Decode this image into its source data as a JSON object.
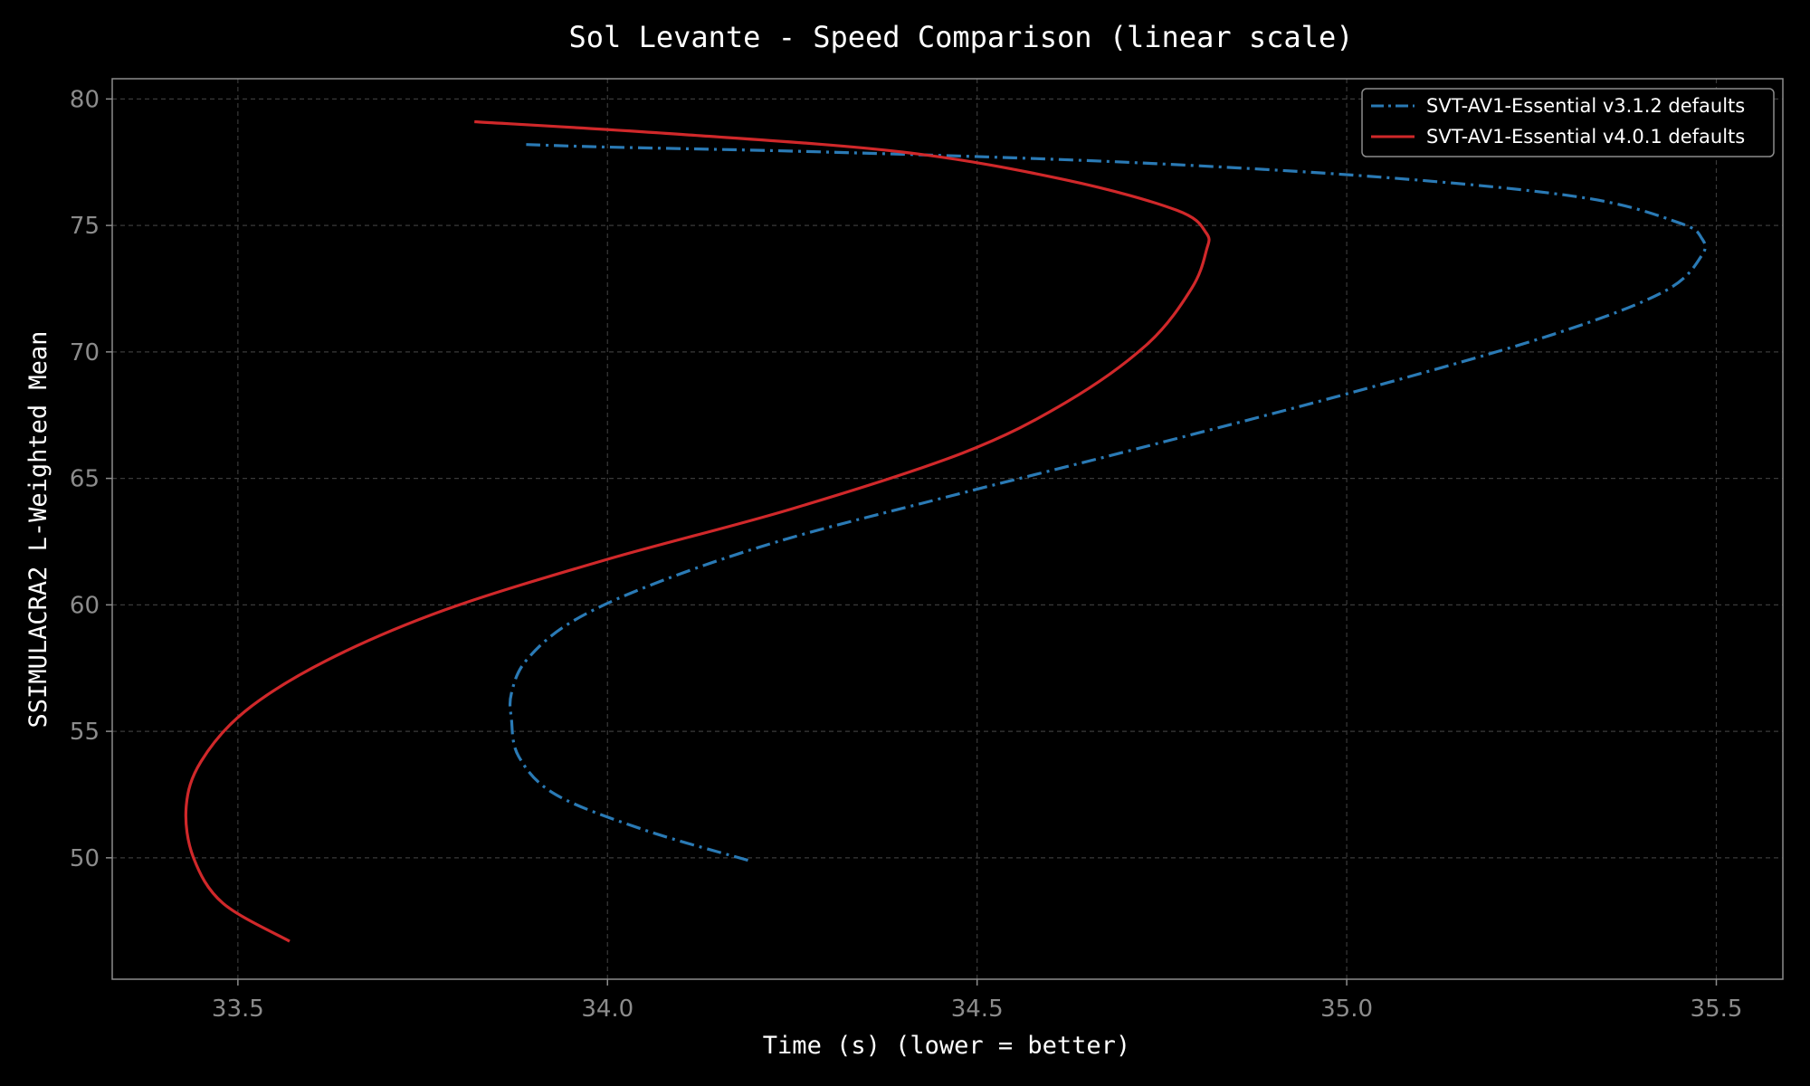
{
  "chart_data": {
    "type": "line",
    "title": "Sol Levante - Speed Comparison (linear scale)",
    "xlabel": "Time (s) (lower = better)",
    "ylabel": "SSIMULACRA2 L-Weighted Mean",
    "xlim": [
      33.33,
      35.59
    ],
    "ylim": [
      45.2,
      80.8
    ],
    "xticks": [
      33.5,
      34.0,
      34.5,
      35.0,
      35.5
    ],
    "xtick_labels": [
      "33.5",
      "34.0",
      "34.5",
      "35.0",
      "35.5"
    ],
    "yticks": [
      50,
      55,
      60,
      65,
      70,
      75,
      80
    ],
    "ytick_labels": [
      "50",
      "55",
      "60",
      "65",
      "70",
      "75",
      "80"
    ],
    "grid": true,
    "legend_position": "top-right",
    "colors": {
      "background": "#000000",
      "grid": "#3a3a3a",
      "frame": "#8c8c8c"
    },
    "series": [
      {
        "name": "SVT-AV1-Essential v3.1.2 defaults",
        "color": "#2a7ab5",
        "style": "dashdot",
        "points": [
          [
            34.19,
            49.9
          ],
          [
            34.05,
            51.1
          ],
          [
            33.93,
            52.5
          ],
          [
            33.88,
            54.0
          ],
          [
            33.87,
            55.5
          ],
          [
            33.87,
            56.5
          ],
          [
            33.89,
            57.8
          ],
          [
            33.95,
            59.3
          ],
          [
            34.06,
            60.8
          ],
          [
            34.23,
            62.5
          ],
          [
            34.45,
            64.2
          ],
          [
            34.72,
            66.2
          ],
          [
            35.02,
            68.5
          ],
          [
            35.28,
            70.7
          ],
          [
            35.43,
            72.4
          ],
          [
            35.48,
            73.8
          ],
          [
            35.48,
            74.5
          ],
          [
            35.45,
            75.1
          ],
          [
            35.32,
            76.1
          ],
          [
            35.05,
            76.9
          ],
          [
            34.7,
            77.5
          ],
          [
            34.3,
            77.9
          ],
          [
            34.0,
            78.1
          ],
          [
            33.89,
            78.2
          ]
        ]
      },
      {
        "name": "SVT-AV1-Essential v4.0.1 defaults",
        "color": "#d0282a",
        "style": "solid",
        "points": [
          [
            33.57,
            46.7
          ],
          [
            33.48,
            48.2
          ],
          [
            33.44,
            50.0
          ],
          [
            33.43,
            52.0
          ],
          [
            33.45,
            53.8
          ],
          [
            33.51,
            55.8
          ],
          [
            33.62,
            57.8
          ],
          [
            33.78,
            59.8
          ],
          [
            34.0,
            61.8
          ],
          [
            34.25,
            63.8
          ],
          [
            34.48,
            66.0
          ],
          [
            34.62,
            68.0
          ],
          [
            34.73,
            70.3
          ],
          [
            34.79,
            72.5
          ],
          [
            34.81,
            74.0
          ],
          [
            34.81,
            74.7
          ],
          [
            34.77,
            75.6
          ],
          [
            34.62,
            76.8
          ],
          [
            34.4,
            77.9
          ],
          [
            34.1,
            78.6
          ],
          [
            33.82,
            79.1
          ]
        ]
      }
    ]
  }
}
